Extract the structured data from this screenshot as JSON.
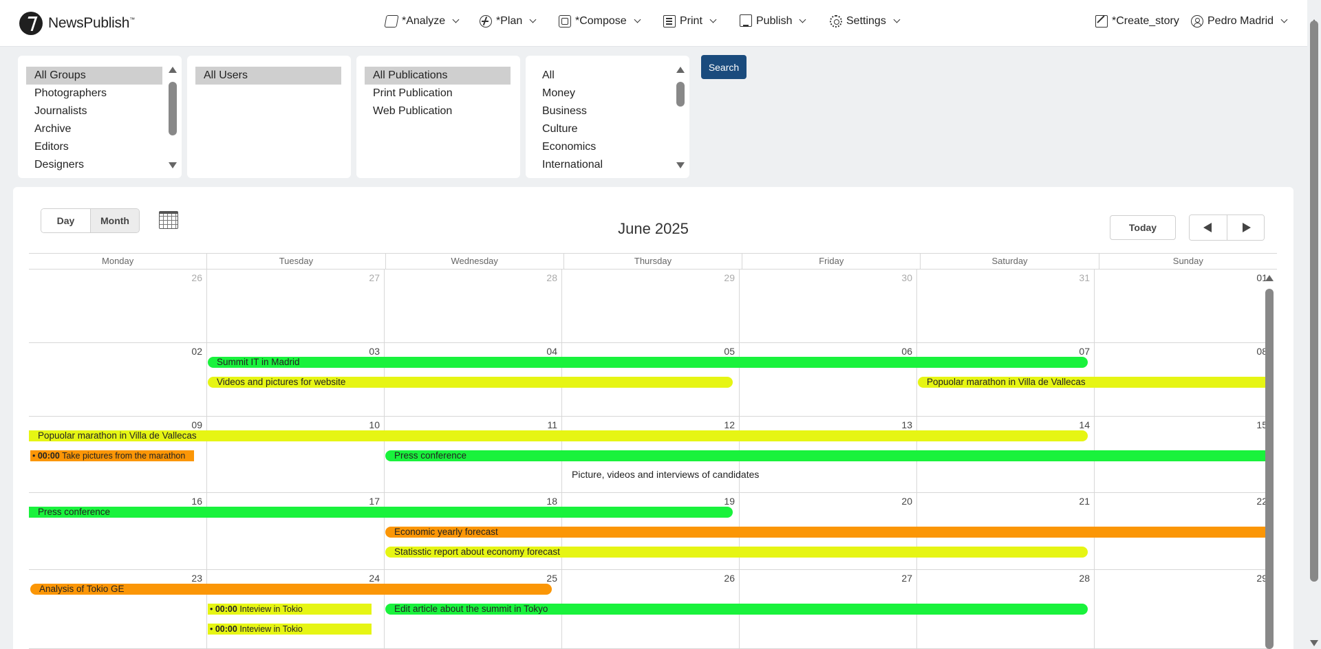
{
  "app": {
    "brand": "NewsPublish",
    "brand_tm": "™"
  },
  "nav": {
    "analyze": "*Analyze",
    "plan": "*Plan",
    "compose": "*Compose",
    "print": "Print",
    "publish": "Publish",
    "settings": "Settings",
    "create_story": "*Create_story",
    "user": "Pedro Madrid"
  },
  "filters": {
    "groups": [
      "All Groups",
      "Photographers",
      "Journalists",
      "Archive",
      "Editors",
      "Designers"
    ],
    "users": [
      "All Users"
    ],
    "publications": [
      "All Publications",
      "Print Publication",
      "Web Publication"
    ],
    "sections": [
      "All",
      "Money",
      "Business",
      "Culture",
      "Economics",
      "International"
    ],
    "search_label": "Search"
  },
  "calendar": {
    "view_day": "Day",
    "view_month": "Month",
    "title": "June 2025",
    "today_label": "Today",
    "weekdays": [
      "Monday",
      "Tuesday",
      "Wednesday",
      "Thursday",
      "Friday",
      "Saturday",
      "Sunday"
    ],
    "colors": {
      "green": "#19f23c",
      "yellow": "#e6f514",
      "orange": "#fb9606"
    },
    "weeks": [
      {
        "days": [
          "26",
          "27",
          "28",
          "29",
          "30",
          "31",
          "01"
        ],
        "other_month": [
          true,
          true,
          true,
          true,
          true,
          true,
          false
        ],
        "events": []
      },
      {
        "days": [
          "02",
          "03",
          "04",
          "05",
          "06",
          "07",
          "08"
        ],
        "other_month": [
          false,
          false,
          false,
          false,
          false,
          false,
          false
        ],
        "events": [
          {
            "title": "Summit IT in Madrid",
            "start": 1,
            "end": 5,
            "lane": 0,
            "color": "green",
            "cont_left": false,
            "cont_right": false
          },
          {
            "title": "Videos and pictures for website",
            "start": 1,
            "end": 3,
            "lane": 1,
            "color": "yellow",
            "cont_left": false,
            "cont_right": false
          },
          {
            "title": "Popuolar marathon in Villa de Vallecas",
            "start": 5,
            "end": 6,
            "lane": 1,
            "color": "yellow",
            "cont_left": false,
            "cont_right": true
          }
        ]
      },
      {
        "days": [
          "09",
          "10",
          "11",
          "12",
          "13",
          "14",
          "15"
        ],
        "other_month": [
          false,
          false,
          false,
          false,
          false,
          false,
          false
        ],
        "events": [
          {
            "title": "Popuolar marathon in Villa de Vallecas",
            "start": 0,
            "end": 5,
            "lane": 0,
            "color": "yellow",
            "cont_left": true,
            "cont_right": false
          },
          {
            "title": "Take pictures from the marathon",
            "time": "00:00",
            "start": 0,
            "end": 0,
            "lane": 1,
            "color": "orange",
            "timed": true
          },
          {
            "title": "Press conference",
            "start": 2,
            "end": 6,
            "lane": 1,
            "color": "green",
            "cont_left": false,
            "cont_right": true
          }
        ],
        "notes": [
          {
            "text": "Picture, videos and interviews of candidates",
            "start": 3,
            "lane": 2
          }
        ]
      },
      {
        "days": [
          "16",
          "17",
          "18",
          "19",
          "20",
          "21",
          "22"
        ],
        "other_month": [
          false,
          false,
          false,
          false,
          false,
          false,
          false
        ],
        "events": [
          {
            "title": "Press conference",
            "start": 0,
            "end": 3,
            "lane": 0,
            "color": "green",
            "cont_left": true,
            "cont_right": false
          },
          {
            "title": "Economic yearly forecast",
            "start": 2,
            "end": 6,
            "lane": 1,
            "color": "orange",
            "cont_left": false,
            "cont_right": true
          },
          {
            "title": "Statisstic report about economy forecast",
            "start": 2,
            "end": 5,
            "lane": 2,
            "color": "yellow",
            "cont_left": false,
            "cont_right": false
          }
        ]
      },
      {
        "days": [
          "23",
          "24",
          "25",
          "26",
          "27",
          "28",
          "29"
        ],
        "other_month": [
          false,
          false,
          false,
          false,
          false,
          false,
          false
        ],
        "events": [
          {
            "title": "Analysis of Tokio GE",
            "start": 0,
            "end": 2,
            "lane": 0,
            "color": "orange",
            "cont_left": false,
            "cont_right": false,
            "partial_end": true
          },
          {
            "title": "Inteview in Tokio",
            "time": "00:00",
            "start": 1,
            "end": 1,
            "lane": 1,
            "color": "yellow",
            "timed": true
          },
          {
            "title": "Edit article about the summit in Tokyo",
            "start": 2,
            "end": 5,
            "lane": 1,
            "color": "green",
            "cont_left": false,
            "cont_right": false
          },
          {
            "title": "Inteview in Tokio",
            "time": "00:00",
            "start": 1,
            "end": 1,
            "lane": 2,
            "color": "yellow",
            "timed": true
          }
        ]
      }
    ]
  }
}
